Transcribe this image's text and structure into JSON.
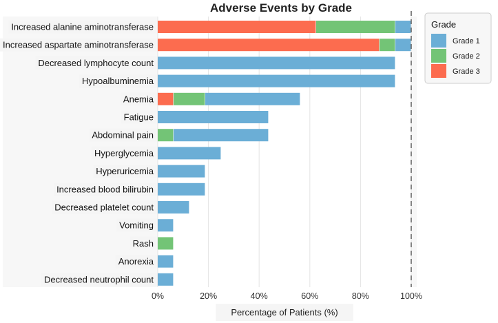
{
  "chart_data": {
    "type": "bar",
    "orientation": "horizontal",
    "stacked": true,
    "title": "Adverse Events by Grade",
    "xlabel": "Percentage of Patients (%)",
    "ylabel": "",
    "xlim": [
      0,
      100
    ],
    "xticks": [
      "0%",
      "20%",
      "40%",
      "60%",
      "80%",
      "100%"
    ],
    "reference_line": {
      "x": 100,
      "style": "dashed"
    },
    "grid": "vertical",
    "legend": {
      "title": "Grade",
      "position": "right"
    },
    "categories": [
      "Increased alanine aminotransferase",
      "Increased aspartate aminotransferase",
      "Decreased lymphocyte count",
      "Hypoalbuminemia",
      "Anemia",
      "Fatigue",
      "Abdominal pain",
      "Hyperglycemia",
      "Hyperuricemia",
      "Increased blood bilirubin",
      "Decreased platelet count",
      "Vomiting",
      "Rash",
      "Anorexia",
      "Decreased neutrophil count"
    ],
    "series": [
      {
        "name": "Grade 3",
        "color": "#fc6c4f",
        "values": [
          62.5,
          87.5,
          0,
          0,
          6.25,
          0,
          0,
          0,
          0,
          0,
          0,
          0,
          0,
          0,
          0
        ]
      },
      {
        "name": "Grade 2",
        "color": "#73c476",
        "values": [
          31.25,
          6.25,
          0,
          0,
          12.5,
          0,
          6.25,
          0,
          0,
          0,
          0,
          0,
          6.25,
          0,
          0
        ]
      },
      {
        "name": "Grade 1",
        "color": "#6baed6",
        "values": [
          6.25,
          6.25,
          93.75,
          93.75,
          37.5,
          43.75,
          37.5,
          25,
          18.75,
          18.75,
          12.5,
          6.25,
          0,
          6.25,
          6.25
        ]
      }
    ],
    "legend_order": [
      "Grade 1",
      "Grade 2",
      "Grade 3"
    ]
  }
}
